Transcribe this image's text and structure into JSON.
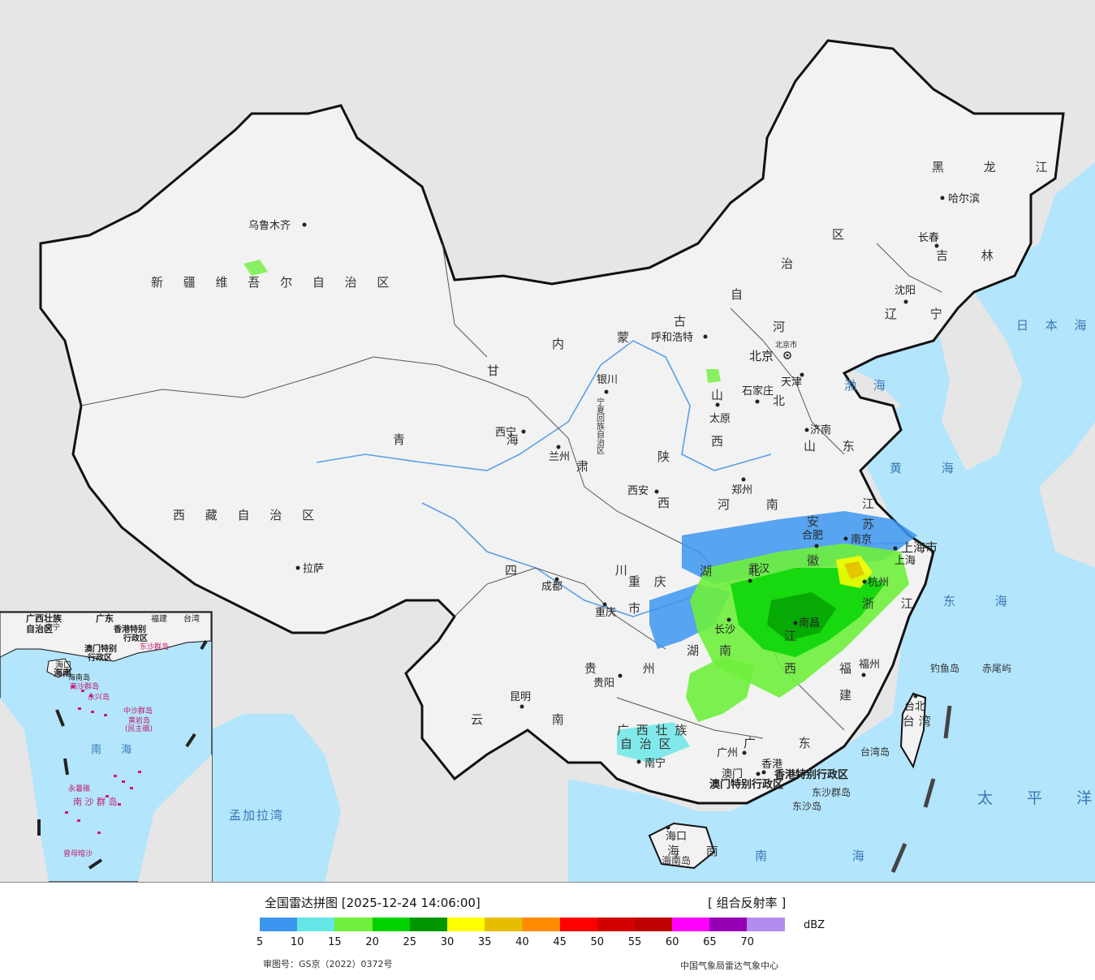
{
  "legend": {
    "title": "全国雷达拼图 [2025-12-24 14:06:00]",
    "product": "[ 组合反射率 ]",
    "unit": "dBZ",
    "ticks": [
      "5",
      "10",
      "15",
      "20",
      "25",
      "30",
      "35",
      "40",
      "45",
      "50",
      "55",
      "60",
      "65",
      "70"
    ],
    "colors": [
      "#3c96f0",
      "#64e6e6",
      "#6ef03c",
      "#00d200",
      "#009600",
      "#ffff00",
      "#e6be00",
      "#ff8c00",
      "#ff0000",
      "#d20000",
      "#be0000",
      "#ff00ff",
      "#9600b4",
      "#b48cf0"
    ],
    "approval": "审图号：GS京（2022）0372号",
    "agency": "中国气象局雷达气象中心"
  },
  "map": {
    "colors": {
      "sea": "#b3e5fc",
      "land": "#f2f2f2",
      "border": "#111111",
      "outside": "#e6e6e6"
    },
    "provinces": [
      "新 疆 维 吾 尔 自 治 区",
      "西 藏 自 治 区",
      "青 海",
      "甘",
      "肃",
      "内",
      "蒙",
      "古",
      "自",
      "治",
      "区",
      "黑 龙 江",
      "吉 林",
      "辽 宁",
      "河",
      "北",
      "山",
      "西",
      "陕",
      "西",
      "四 川",
      "重 庆",
      "市",
      "云 南",
      "贵 州",
      "湖 北",
      "湖",
      "南",
      "安",
      "徽",
      "江",
      "苏",
      "浙 江",
      "江",
      "西",
      "福",
      "建",
      "河 南",
      "山 东",
      "广 西 壮 族",
      "自 治 区",
      "广 东",
      "台 湾",
      "海 南",
      "宁夏回族自治区"
    ],
    "cities": [
      "乌鲁木齐",
      "拉萨",
      "西宁",
      "兰州",
      "银川",
      "呼和浩特",
      "北京",
      "北京市",
      "天津",
      "石家庄",
      "太原",
      "济南",
      "郑州",
      "西安",
      "成都",
      "重庆",
      "武汉",
      "合肥",
      "南京",
      "上海市",
      "上海",
      "杭州",
      "南昌",
      "长沙",
      "福州",
      "台北",
      "贵阳",
      "昆明",
      "南宁",
      "广州",
      "香港",
      "澳门",
      "海口",
      "沈阳",
      "长春",
      "哈尔滨"
    ],
    "special": [
      "香港特别行政区",
      "澳门特别行政区"
    ],
    "islands": [
      "钓鱼岛",
      "赤尾屿",
      "台湾岛",
      "东沙群岛",
      "东沙岛",
      "海南岛"
    ],
    "seas": [
      "日 本 海",
      "渤 海",
      "黄 海",
      "东 海",
      "太 平 洋",
      "南 海",
      "孟加拉湾"
    ],
    "inset": {
      "labels": [
        "广西壮族",
        "自治区",
        "广东",
        "福建",
        "台湾",
        "南宁",
        "香港特别",
        "行政区",
        "澳门特别",
        "行政区",
        "东沙群岛",
        "海口",
        "海南",
        "海南岛",
        "西沙群岛",
        "永兴岛",
        "中沙群岛",
        "黄岩岛",
        "(民主礁)",
        "南 海",
        "永暑礁",
        "南 沙 群 岛",
        "曾母暗沙"
      ]
    }
  }
}
